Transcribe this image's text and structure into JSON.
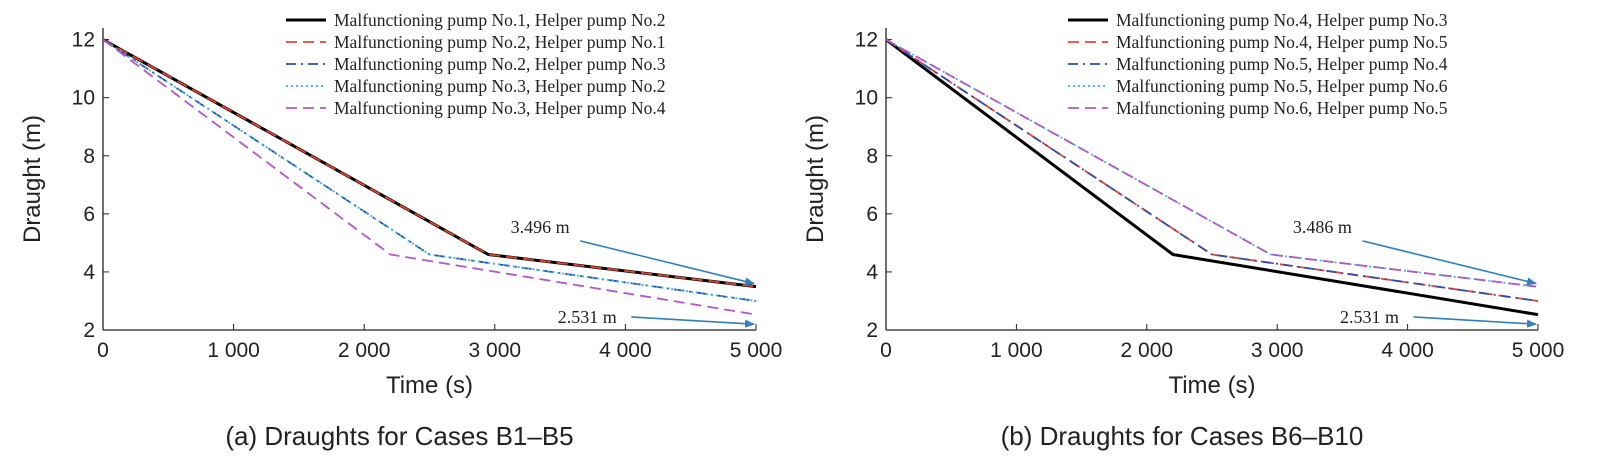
{
  "chart_data": [
    {
      "type": "line",
      "caption": "(a) Draughts for Cases B1–B5",
      "xlabel": "Time (s)",
      "ylabel": "Draught (m)",
      "xlim": [
        0,
        5000
      ],
      "ylim": [
        2,
        12.4
      ],
      "xticks": [
        0,
        1000,
        2000,
        3000,
        4000,
        5000
      ],
      "xtick_labels": [
        "0",
        "1 000",
        "2 000",
        "3 000",
        "4 000",
        "5 000"
      ],
      "yticks": [
        2,
        4,
        6,
        8,
        10,
        12
      ],
      "ytick_labels": [
        "2",
        "4",
        "6",
        "8",
        "10",
        "12"
      ],
      "legend_loc": "top-right",
      "series": [
        {
          "name": "Malfunctioning pump No.1, Helper pump No.2",
          "color": "#000000",
          "style": "solid",
          "x": [
            0,
            2950,
            5000
          ],
          "y": [
            12,
            4.6,
            3.496
          ]
        },
        {
          "name": "Malfunctioning pump No.2, Helper pump No.1",
          "color": "#e8432e",
          "style": "dashed",
          "x": [
            0,
            2950,
            5000
          ],
          "y": [
            12,
            4.6,
            3.496
          ]
        },
        {
          "name": "Malfunctioning pump No.2, Helper pump No.3",
          "color": "#2b4bb0",
          "style": "dashdot",
          "x": [
            0,
            2500,
            5000
          ],
          "y": [
            12,
            4.6,
            3.0
          ]
        },
        {
          "name": "Malfunctioning pump No.3, Helper pump No.2",
          "color": "#3ab4d8",
          "style": "dotted",
          "x": [
            0,
            2500,
            5000
          ],
          "y": [
            12,
            4.6,
            3.0
          ]
        },
        {
          "name": "Malfunctioning pump No.3, Helper pump No.4",
          "color": "#b455c8",
          "style": "dashed",
          "x": [
            0,
            2200,
            5000
          ],
          "y": [
            12,
            4.6,
            2.531
          ]
        }
      ],
      "annotations": [
        {
          "text": "3.496 m",
          "tx": 3500,
          "ty": 5.0,
          "ax": 5000,
          "ay": 3.6
        },
        {
          "text": "2.531 m",
          "tx": 3800,
          "ty": 2.45,
          "ax": 5000,
          "ay": 2.2
        }
      ]
    },
    {
      "type": "line",
      "caption": "(b) Draughts for Cases B6–B10",
      "xlabel": "Time (s)",
      "ylabel": "Draught (m)",
      "xlim": [
        0,
        5000
      ],
      "ylim": [
        2,
        12.4
      ],
      "xticks": [
        0,
        1000,
        2000,
        3000,
        4000,
        5000
      ],
      "xtick_labels": [
        "0",
        "1 000",
        "2 000",
        "3 000",
        "4 000",
        "5 000"
      ],
      "yticks": [
        2,
        4,
        6,
        8,
        10,
        12
      ],
      "ytick_labels": [
        "2",
        "4",
        "6",
        "8",
        "10",
        "12"
      ],
      "legend_loc": "top-right",
      "series": [
        {
          "name": "Malfunctioning pump No.4, Helper pump No.3",
          "color": "#000000",
          "style": "solid",
          "x": [
            0,
            2200,
            5000
          ],
          "y": [
            12,
            4.6,
            2.531
          ]
        },
        {
          "name": "Malfunctioning pump No.4, Helper pump No.5",
          "color": "#e8432e",
          "style": "dashed",
          "x": [
            0,
            2500,
            5000
          ],
          "y": [
            12,
            4.6,
            3.0
          ]
        },
        {
          "name": "Malfunctioning pump No.5, Helper pump No.4",
          "color": "#2b4bb0",
          "style": "dashdot",
          "x": [
            0,
            2500,
            5000
          ],
          "y": [
            12,
            4.6,
            3.0
          ]
        },
        {
          "name": "Malfunctioning pump No.5, Helper pump No.6",
          "color": "#3ab4d8",
          "style": "dotted",
          "x": [
            0,
            2950,
            5000
          ],
          "y": [
            12,
            4.6,
            3.486
          ]
        },
        {
          "name": "Malfunctioning pump No.6, Helper pump No.5",
          "color": "#b455c8",
          "style": "dashed",
          "x": [
            0,
            2950,
            5000
          ],
          "y": [
            12,
            4.6,
            3.486
          ]
        }
      ],
      "annotations": [
        {
          "text": "3.486 m",
          "tx": 3500,
          "ty": 5.0,
          "ax": 5000,
          "ay": 3.6
        },
        {
          "text": "2.531 m",
          "tx": 3800,
          "ty": 2.45,
          "ax": 5000,
          "ay": 2.2
        }
      ]
    }
  ]
}
